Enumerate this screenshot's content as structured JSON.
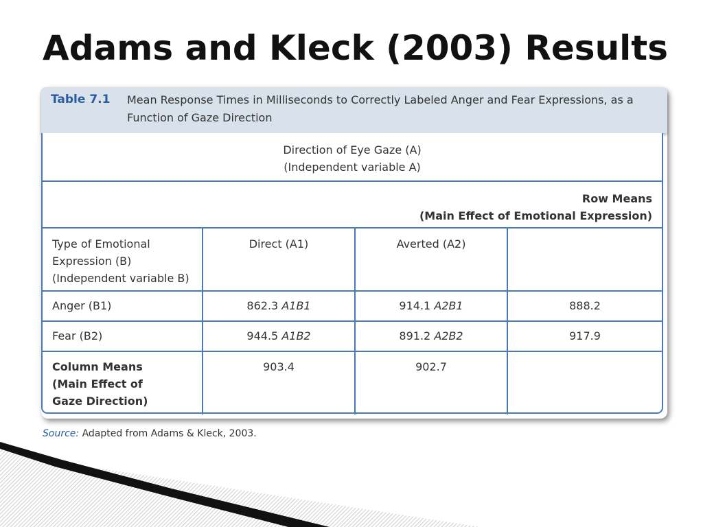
{
  "slide": {
    "title": "Adams and Kleck (2003) Results"
  },
  "table": {
    "number": "Table 7.1",
    "caption": "Mean Response Times in Milliseconds to Correctly Labeled Anger and Fear Expressions, as a Function of Gaze Direction",
    "gaze_header_line1": "Direction of Eye Gaze (A)",
    "gaze_header_line2": "(Independent variable A)",
    "row_means_line1": "Row Means",
    "row_means_line2": "(Main Effect of Emotional Expression)",
    "type_header_line1": "Type of Emotional",
    "type_header_line2": "Expression (B)",
    "type_header_line3": "(Independent variable B)",
    "col_direct": "Direct (A1)",
    "col_averted": "Averted (A2)",
    "rows": [
      {
        "label": "Anger (B1)",
        "direct_value": "862.3",
        "direct_code": "A1B1",
        "averted_value": "914.1",
        "averted_code": "A2B1",
        "row_mean": "888.2"
      },
      {
        "label": "Fear (B2)",
        "direct_value": "944.5",
        "direct_code": "A1B2",
        "averted_value": "891.2",
        "averted_code": "A2B2",
        "row_mean": "917.9"
      }
    ],
    "col_means_line1": "Column Means",
    "col_means_line2": "(Main Effect of",
    "col_means_line3": "Gaze Direction)",
    "col_mean_direct": "903.4",
    "col_mean_averted": "902.7"
  },
  "source": {
    "label": "Source:",
    "text": "Adapted from Adams & Kleck, 2003."
  },
  "colors": {
    "accent_blue": "#2a5aa0",
    "table_border": "#4a7ab5",
    "header_fill": "#d9e1ea"
  }
}
